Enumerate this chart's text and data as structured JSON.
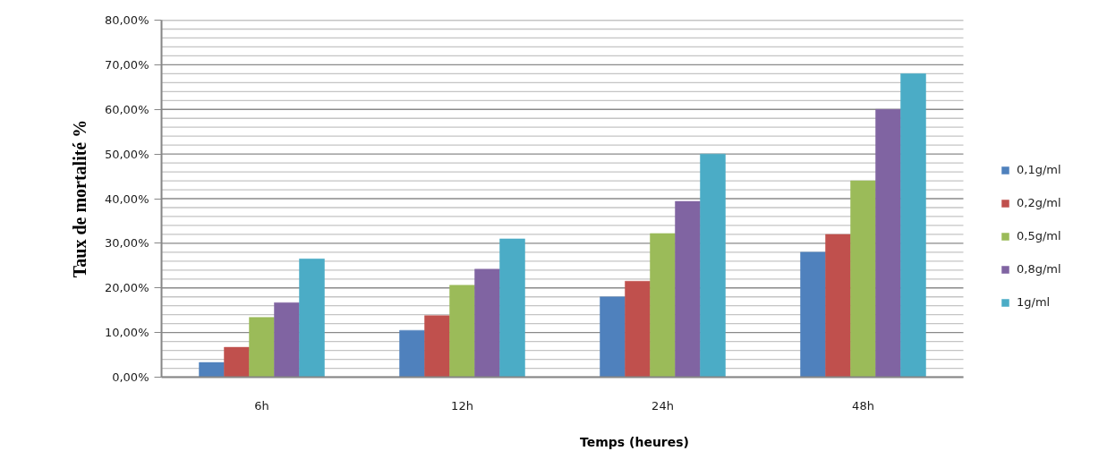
{
  "chart_data": {
    "type": "bar",
    "xlabel": "Temps (heures)",
    "ylabel": "Taux de mortalité %",
    "categories": [
      "6h",
      "12h",
      "24h",
      "48h"
    ],
    "series": [
      {
        "name": "0,1g/ml",
        "color": "#4f81bd",
        "values": [
          3.3,
          10.5,
          18,
          28
        ]
      },
      {
        "name": "0,2g/ml",
        "color": "#c0504d",
        "values": [
          6.7,
          13.8,
          21.5,
          32
        ]
      },
      {
        "name": "0,5g/ml",
        "color": "#9bbb59",
        "values": [
          13.4,
          20.6,
          32.2,
          44
        ]
      },
      {
        "name": "0,8g/ml",
        "color": "#8064a2",
        "values": [
          16.7,
          24.2,
          39.4,
          60
        ]
      },
      {
        "name": "1g/ml",
        "color": "#4bacc6",
        "values": [
          26.5,
          31,
          50,
          68
        ]
      }
    ],
    "ylim": [
      0,
      80
    ],
    "yticks": [
      {
        "value": 0,
        "label": "0,00%"
      },
      {
        "value": 2,
        "label": null
      },
      {
        "value": 4,
        "label": null
      },
      {
        "value": 6,
        "label": null
      },
      {
        "value": 8,
        "label": null
      },
      {
        "value": 10,
        "label": "10,00%"
      },
      {
        "value": 12,
        "label": null
      },
      {
        "value": 14,
        "label": null
      },
      {
        "value": 16,
        "label": null
      },
      {
        "value": 18,
        "label": null
      },
      {
        "value": 20,
        "label": "20,00%"
      },
      {
        "value": 22,
        "label": null
      },
      {
        "value": 24,
        "label": null
      },
      {
        "value": 26,
        "label": null
      },
      {
        "value": 28,
        "label": null
      },
      {
        "value": 30,
        "label": "30,00%"
      },
      {
        "value": 32,
        "label": null
      },
      {
        "value": 34,
        "label": null
      },
      {
        "value": 36,
        "label": null
      },
      {
        "value": 38,
        "label": null
      },
      {
        "value": 40,
        "label": "40,00%"
      },
      {
        "value": 42,
        "label": null
      },
      {
        "value": 44,
        "label": null
      },
      {
        "value": 46,
        "label": null
      },
      {
        "value": 48,
        "label": null
      },
      {
        "value": 50,
        "label": "50,00%"
      },
      {
        "value": 52,
        "label": null
      },
      {
        "value": 54,
        "label": null
      },
      {
        "value": 56,
        "label": null
      },
      {
        "value": 58,
        "label": null
      },
      {
        "value": 60,
        "label": "60,00%"
      },
      {
        "value": 62,
        "label": null
      },
      {
        "value": 64,
        "label": null
      },
      {
        "value": 66,
        "label": null
      },
      {
        "value": 68,
        "label": null
      },
      {
        "value": 70,
        "label": "70,00%"
      },
      {
        "value": 72,
        "label": null
      },
      {
        "value": 74,
        "label": null
      },
      {
        "value": 76,
        "label": null
      },
      {
        "value": 78,
        "label": null
      },
      {
        "value": 80,
        "label": "80,00%"
      }
    ],
    "grid": "y",
    "legend": "right"
  }
}
